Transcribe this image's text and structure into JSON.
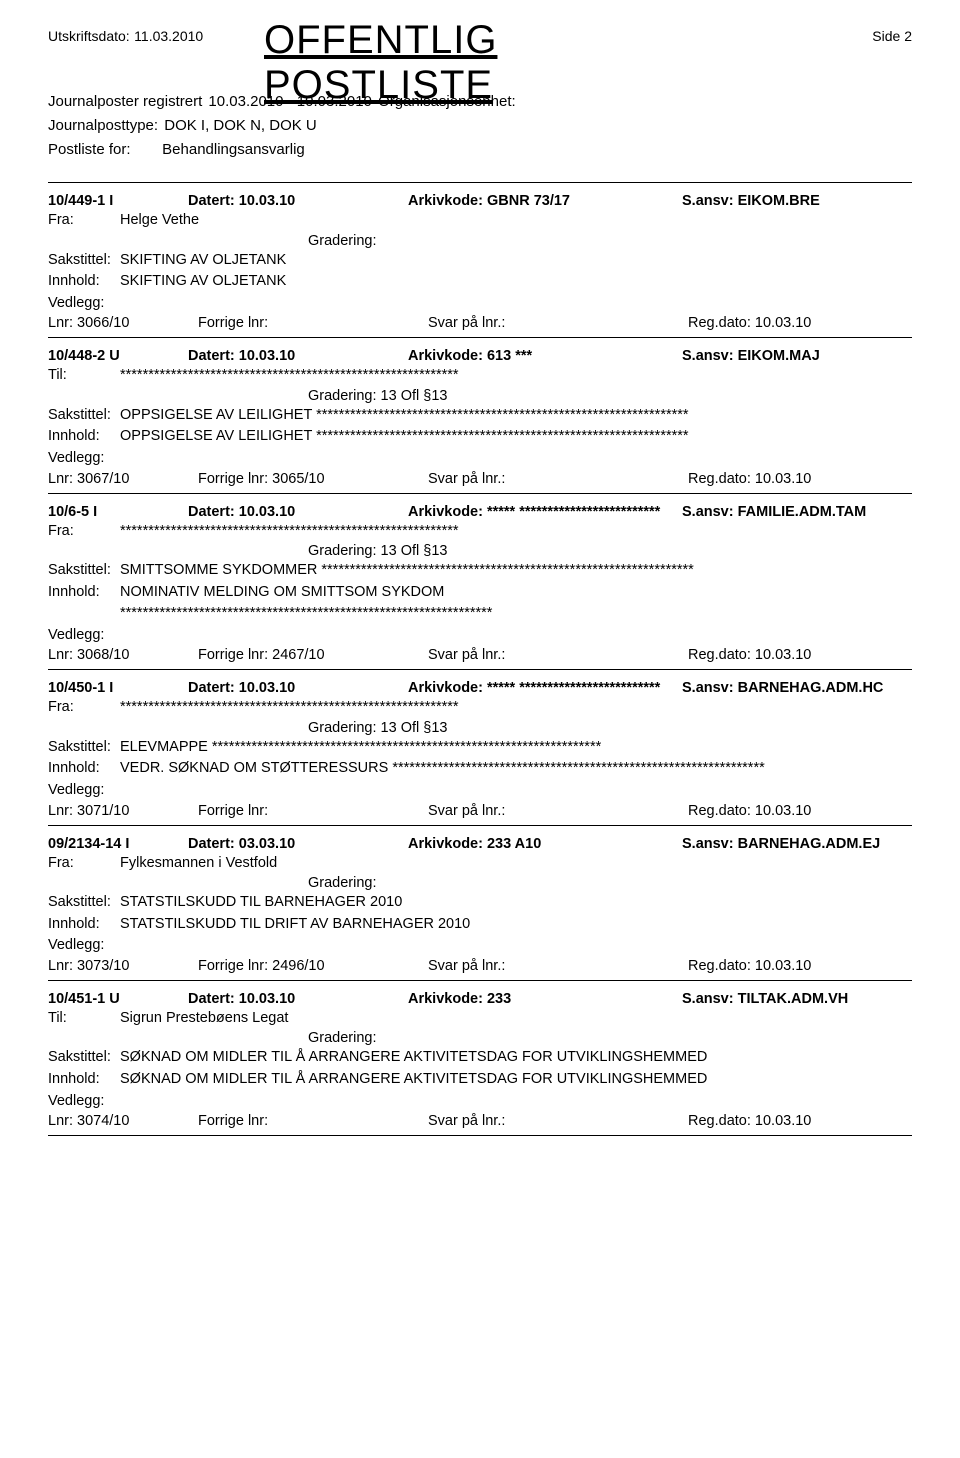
{
  "header": {
    "print_date_label": "Utskriftsdato:",
    "print_date_value": "11.03.2010",
    "title": "OFFENTLIG POSTLISTE",
    "page_side": "Side 2"
  },
  "meta": {
    "registered_label": "Journalposter registrert",
    "registered_value": "10.03.2010  -  10.03.2010",
    "org_label": "Organisasjonsenhet:",
    "posttype_label": "Journalposttype:",
    "posttype_value": "DOK I, DOK N, DOK U",
    "postliste_label": "Postliste for:",
    "postliste_value": "Behandlingsansvarlig"
  },
  "labels": {
    "fra": "Fra:",
    "til": "Til:",
    "sakstittel": "Sakstittel:",
    "innhold": "Innhold:",
    "vedlegg": "Vedlegg:",
    "lnr": "Lnr:",
    "forrige": "Forrige lnr:",
    "svar": "Svar på lnr.:",
    "regdato": "Reg.dato:",
    "datert": "Datert:",
    "arkivkode": "Arkivkode:",
    "gradering": "Gradering:",
    "ansv": "S.ansv:"
  },
  "entries": [
    {
      "case": "10/449-1  I",
      "datert": "10.03.10",
      "arkivkode": "GBNR 73/17",
      "ansv": "EIKOM.BRE",
      "party_label": "Fra:",
      "party_value": "Helge Vethe",
      "gradering": "",
      "sakstittel": "SKIFTING AV OLJETANK",
      "innhold": "SKIFTING AV OLJETANK",
      "lnr": "3066/10",
      "forrige": "",
      "svar": "",
      "regdato": "10.03.10"
    },
    {
      "case": "10/448-2  U",
      "datert": "10.03.10",
      "arkivkode": "613  ***",
      "ansv": "EIKOM.MAJ",
      "party_label": "Til:",
      "party_value": "************************************************************",
      "gradering": "13 Ofl §13",
      "sakstittel": "OPPSIGELSE AV LEILIGHET  ******************************************************************",
      "innhold": "OPPSIGELSE AV LEILIGHET  ******************************************************************",
      "lnr": "3067/10",
      "forrige": "3065/10",
      "svar": "",
      "regdato": "10.03.10"
    },
    {
      "case": "10/6-5  I",
      "datert": "10.03.10",
      "arkivkode": "*****  *************************",
      "ansv": "FAMILIE.ADM.TAM",
      "party_label": "Fra:",
      "party_value": "************************************************************",
      "gradering": "13 Ofl §13",
      "sakstittel": "SMITTSOMME SYKDOMMER  ******************************************************************",
      "innhold": "NOMINATIV MELDING OM SMITTSOM SYKDOM",
      "innhold2": "******************************************************************",
      "lnr": "3068/10",
      "forrige": "2467/10",
      "svar": "",
      "regdato": "10.03.10"
    },
    {
      "case": "10/450-1  I",
      "datert": "10.03.10",
      "arkivkode": "*****  *************************",
      "ansv": "BARNEHAG.ADM.HC",
      "party_label": "Fra:",
      "party_value": "************************************************************",
      "gradering": "13 Ofl §13",
      "sakstittel": "ELEVMAPPE  *********************************************************************",
      "innhold": "VEDR. SØKNAD OM STØTTERESSURS  ******************************************************************",
      "lnr": "3071/10",
      "forrige": "",
      "svar": "",
      "regdato": "10.03.10"
    },
    {
      "case": "09/2134-14  I",
      "datert": "03.03.10",
      "arkivkode": "233 A10",
      "ansv": "BARNEHAG.ADM.EJ",
      "party_label": "Fra:",
      "party_value": "Fylkesmannen i Vestfold",
      "gradering": "",
      "sakstittel": "STATSTILSKUDD TIL BARNEHAGER 2010",
      "innhold": "STATSTILSKUDD TIL DRIFT AV BARNEHAGER 2010",
      "lnr": "3073/10",
      "forrige": "2496/10",
      "svar": "",
      "regdato": "10.03.10"
    },
    {
      "case": "10/451-1  U",
      "datert": "10.03.10",
      "arkivkode": "233",
      "ansv": "TILTAK.ADM.VH",
      "party_label": "Til:",
      "party_value": "Sigrun Prestebøens Legat",
      "gradering": "",
      "sakstittel": "SØKNAD OM MIDLER TIL Å ARRANGERE AKTIVITETSDAG FOR UTVIKLINGSHEMMED",
      "innhold": "SØKNAD OM MIDLER TIL Å ARRANGERE AKTIVITETSDAG FOR UTVIKLINGSHEMMED",
      "lnr": "3074/10",
      "forrige": "",
      "svar": "",
      "regdato": "10.03.10"
    }
  ]
}
